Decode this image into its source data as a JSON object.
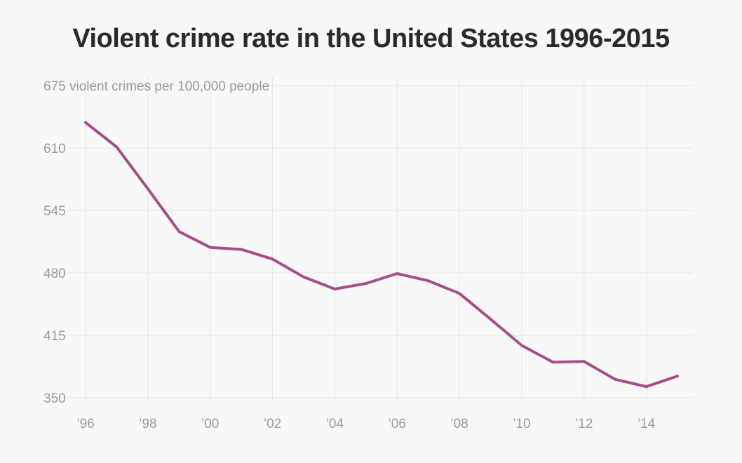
{
  "chart_data": {
    "type": "line",
    "title": "Violent crime rate in the United States 1996-2015",
    "ylabel": "675 violent crimes per 100,000 people",
    "ylim": [
      350,
      675
    ],
    "xlim": [
      1996,
      2015
    ],
    "y_ticks": [
      "610",
      "545",
      "480",
      "415",
      "350"
    ],
    "y_tick_values": [
      610,
      545,
      480,
      415,
      350
    ],
    "x_ticks": [
      "’96",
      "’98",
      "’00",
      "’02",
      "’04",
      "’06",
      "’08",
      "’10",
      "’12",
      "’14"
    ],
    "x_tick_values": [
      1996,
      1998,
      2000,
      2002,
      2004,
      2006,
      2008,
      2010,
      2012,
      2014
    ],
    "grid": true,
    "series": [
      {
        "color": "#a64f86",
        "x": [
          1996,
          1997,
          1998,
          1999,
          2000,
          2001,
          2002,
          2003,
          2004,
          2005,
          2006,
          2007,
          2008,
          2009,
          2010,
          2011,
          2012,
          2013,
          2014,
          2015
        ],
        "y": [
          636.6,
          611.0,
          567.6,
          523.0,
          506.5,
          504.5,
          494.4,
          475.8,
          463.2,
          469.0,
          479.3,
          471.8,
          458.6,
          431.9,
          404.5,
          387.1,
          387.8,
          369.1,
          361.6,
          372.6
        ]
      }
    ]
  }
}
